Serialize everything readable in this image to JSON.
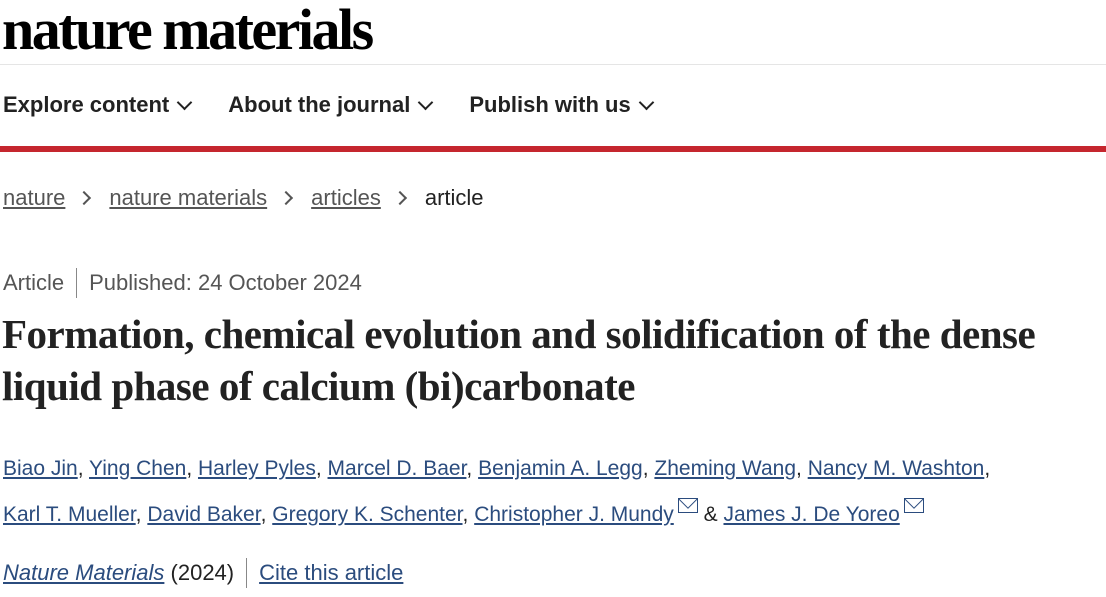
{
  "logo": "nature materials",
  "nav": [
    "Explore content",
    "About the journal",
    "Publish with us"
  ],
  "breadcrumb": [
    "nature",
    "nature materials",
    "articles",
    "article"
  ],
  "meta": {
    "type": "Article",
    "published": "Published: 24 October 2024"
  },
  "title": "Formation, chemical evolution and solidification of the dense liquid phase of calcium (bi)carbonate",
  "authors": [
    "Biao Jin",
    "Ying Chen",
    "Harley Pyles",
    "Marcel D. Baer",
    "Benjamin A. Legg",
    "Zheming Wang",
    "Nancy M. Washton",
    "Karl T. Mueller",
    "David Baker",
    "Gregory K. Schenter",
    "Christopher J. Mundy",
    "James J. De Yoreo"
  ],
  "author_connector": "&",
  "journal": "Nature Materials",
  "year": "(2024)",
  "cite": "Cite this article",
  "colors": {
    "accent": "#c5262e",
    "link": "#2b4c7e"
  }
}
